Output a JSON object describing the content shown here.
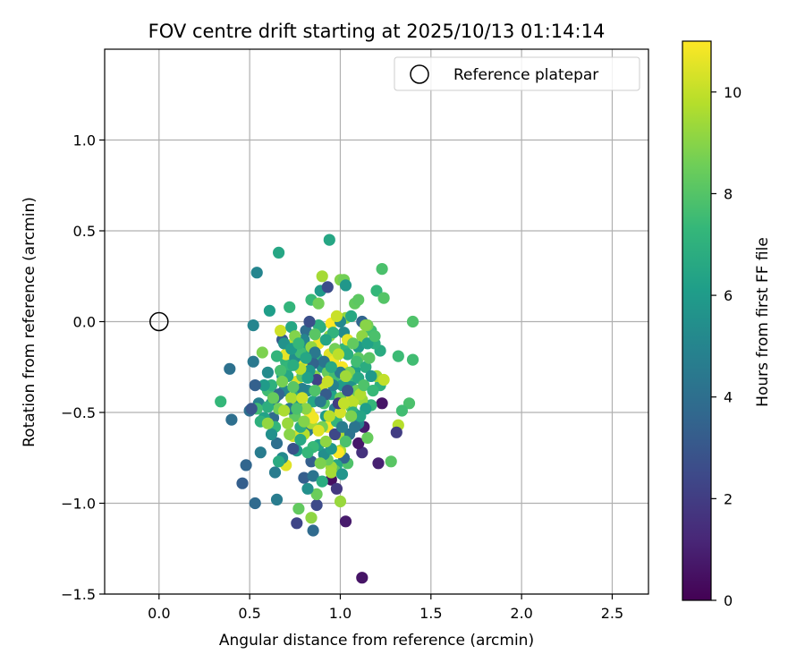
{
  "chart_data": {
    "type": "scatter",
    "title": "FOV centre drift starting at 2025/10/13 01:14:14",
    "xlabel": "Angular distance from reference (arcmin)",
    "ylabel": "Rotation from reference (arcmin)",
    "xlim": [
      -0.3,
      2.7
    ],
    "ylim": [
      -1.5,
      1.5
    ],
    "xticks": [
      0.0,
      0.5,
      1.0,
      1.5,
      2.0,
      2.5
    ],
    "xtick_labels": [
      "0.0",
      "0.5",
      "1.0",
      "1.5",
      "2.0",
      "2.5"
    ],
    "yticks": [
      -1.5,
      -1.0,
      -0.5,
      0.0,
      0.5,
      1.0
    ],
    "ytick_labels": [
      "−1.5",
      "−1.0",
      "−0.5",
      "0.0",
      "0.5",
      "1.0"
    ],
    "grid": true,
    "legend": {
      "label": "Reference platepar",
      "placement": "top-right"
    },
    "reference": {
      "x": 0.0,
      "y": 0.0
    },
    "colorbar": {
      "label": "Hours from first FF file",
      "range": [
        0,
        11
      ],
      "ticks": [
        0,
        2,
        4,
        6,
        8,
        10
      ],
      "tick_labels": [
        "0",
        "2",
        "4",
        "6",
        "8",
        "10"
      ],
      "colormap": "viridis",
      "stops": [
        "#440154",
        "#482878",
        "#3e4989",
        "#31688e",
        "#26828e",
        "#1f9e89",
        "#35b779",
        "#6ece58",
        "#b5de2b",
        "#fde725"
      ]
    },
    "marker_color_mode": "hours",
    "points": [
      [
        1.12,
        -1.41,
        0.6
      ],
      [
        1.03,
        -1.1,
        0.8
      ],
      [
        0.85,
        -1.15,
        3.8
      ],
      [
        0.76,
        -1.11,
        2.3
      ],
      [
        0.87,
        -1.01,
        2.5
      ],
      [
        0.53,
        -1.0,
        3.8
      ],
      [
        0.65,
        -0.98,
        4.6
      ],
      [
        0.46,
        -0.89,
        3.3
      ],
      [
        0.48,
        -0.79,
        3.6
      ],
      [
        0.95,
        -0.87,
        0.4
      ],
      [
        0.98,
        -0.92,
        1.8
      ],
      [
        1.0,
        -0.99,
        9.3
      ],
      [
        0.64,
        -0.83,
        4.6
      ],
      [
        0.8,
        -0.86,
        3.3
      ],
      [
        0.85,
        -0.85,
        4.2
      ],
      [
        0.84,
        -1.08,
        9.1
      ],
      [
        0.77,
        -1.03,
        8.3
      ],
      [
        0.39,
        -0.26,
        4.1
      ],
      [
        0.4,
        -0.54,
        4.0
      ],
      [
        0.34,
        -0.44,
        7.3
      ],
      [
        0.5,
        -0.49,
        4.0
      ],
      [
        0.52,
        -0.22,
        4.4
      ],
      [
        0.52,
        -0.02,
        5.0
      ],
      [
        0.54,
        0.27,
        5.0
      ],
      [
        0.61,
        0.06,
        6.1
      ],
      [
        0.66,
        0.38,
        6.5
      ],
      [
        0.72,
        0.08,
        7.2
      ],
      [
        0.84,
        0.12,
        7.4
      ],
      [
        0.88,
        0.1,
        8.6
      ],
      [
        0.9,
        0.25,
        9.5
      ],
      [
        0.94,
        0.45,
        6.5
      ],
      [
        0.89,
        0.17,
        5.9
      ],
      [
        0.93,
        0.19,
        2.6
      ],
      [
        1.0,
        0.23,
        8.9
      ],
      [
        1.02,
        0.23,
        8.6
      ],
      [
        1.03,
        0.2,
        5.8
      ],
      [
        1.08,
        0.1,
        8.3
      ],
      [
        1.1,
        0.12,
        8.2
      ],
      [
        1.2,
        0.17,
        7.3
      ],
      [
        1.23,
        0.29,
        7.8
      ],
      [
        1.24,
        0.13,
        8.0
      ],
      [
        1.4,
        0.0,
        7.9
      ],
      [
        1.4,
        -0.21,
        7.6
      ],
      [
        1.32,
        -0.19,
        7.5
      ],
      [
        1.38,
        -0.45,
        7.8
      ],
      [
        1.34,
        -0.49,
        7.6
      ],
      [
        1.32,
        -0.57,
        9.8
      ],
      [
        1.31,
        -0.61,
        2.0
      ],
      [
        1.28,
        -0.77,
        8.1
      ],
      [
        1.21,
        -0.78,
        1.0
      ],
      [
        1.12,
        -0.72,
        1.6
      ],
      [
        1.1,
        -0.67,
        0.7
      ],
      [
        1.15,
        -0.64,
        8.4
      ],
      [
        1.13,
        -0.58,
        0.8
      ],
      [
        1.23,
        -0.45,
        0.6
      ],
      [
        1.17,
        -0.46,
        7.3
      ],
      [
        1.22,
        -0.35,
        7.0
      ],
      [
        1.2,
        -0.3,
        9.4
      ],
      [
        1.24,
        -0.32,
        10.0
      ],
      [
        1.22,
        -0.16,
        6.7
      ],
      [
        1.19,
        -0.12,
        6.9
      ],
      [
        1.17,
        -0.05,
        7.6
      ],
      [
        1.15,
        -0.02,
        8.6
      ],
      [
        1.12,
        0.0,
        3.6
      ],
      [
        1.12,
        -0.08,
        9.1
      ],
      [
        1.1,
        -0.14,
        6.0
      ],
      [
        1.1,
        -0.2,
        8.2
      ],
      [
        1.08,
        -0.27,
        6.2
      ],
      [
        1.06,
        -0.33,
        7.4
      ],
      [
        1.05,
        -0.4,
        10.5
      ],
      [
        1.06,
        -0.47,
        8.5
      ],
      [
        1.08,
        -0.51,
        3.5
      ],
      [
        1.12,
        -0.43,
        9.3
      ],
      [
        1.14,
        -0.48,
        6.1
      ],
      [
        1.1,
        -0.56,
        5.0
      ],
      [
        1.05,
        -0.62,
        4.2
      ],
      [
        1.04,
        -0.78,
        7.9
      ],
      [
        1.02,
        -0.75,
        3.6
      ],
      [
        1.0,
        -0.71,
        9.6
      ],
      [
        0.99,
        -0.72,
        11.0
      ],
      [
        0.98,
        -0.79,
        6.5
      ],
      [
        0.97,
        -0.82,
        8.1
      ],
      [
        0.95,
        -0.8,
        9.4
      ],
      [
        0.93,
        -0.76,
        8.4
      ],
      [
        0.91,
        -0.73,
        5.4
      ],
      [
        0.88,
        -0.68,
        6.2
      ],
      [
        0.85,
        -0.69,
        7.4
      ],
      [
        0.84,
        -0.77,
        3.3
      ],
      [
        0.82,
        -0.6,
        4.5
      ],
      [
        0.8,
        -0.62,
        9.8
      ],
      [
        0.78,
        -0.58,
        6.8
      ],
      [
        0.76,
        -0.71,
        6.0
      ],
      [
        0.74,
        -0.7,
        2.8
      ],
      [
        0.74,
        -0.63,
        10.3
      ],
      [
        0.72,
        -0.62,
        9.0
      ],
      [
        0.7,
        -0.79,
        10.5
      ],
      [
        0.68,
        -0.75,
        5.2
      ],
      [
        0.66,
        -0.77,
        6.7
      ],
      [
        0.65,
        -0.67,
        4.0
      ],
      [
        0.63,
        -0.53,
        3.8
      ],
      [
        0.62,
        -0.45,
        5.0
      ],
      [
        0.6,
        -0.38,
        7.6
      ],
      [
        0.58,
        -0.53,
        6.3
      ],
      [
        0.56,
        -0.72,
        4.6
      ],
      [
        0.55,
        -0.45,
        4.8
      ],
      [
        0.57,
        -0.17,
        8.8
      ],
      [
        0.6,
        -0.28,
        5.3
      ],
      [
        0.62,
        -0.35,
        7.0
      ],
      [
        0.64,
        -0.42,
        4.1
      ],
      [
        0.66,
        -0.48,
        8.6
      ],
      [
        0.68,
        -0.3,
        6.1
      ],
      [
        0.7,
        -0.22,
        7.1
      ],
      [
        0.72,
        -0.13,
        9.9
      ],
      [
        0.7,
        -0.18,
        10.6
      ],
      [
        0.68,
        -0.1,
        3.1
      ],
      [
        0.67,
        -0.05,
        10.2
      ],
      [
        0.69,
        -0.12,
        5.6
      ],
      [
        0.71,
        -0.25,
        7.3
      ],
      [
        0.73,
        -0.03,
        6.5
      ],
      [
        0.75,
        -0.2,
        5.4
      ],
      [
        0.76,
        -0.33,
        10.4
      ],
      [
        0.77,
        -0.4,
        6.7
      ],
      [
        0.78,
        -0.47,
        7.4
      ],
      [
        0.79,
        -0.3,
        8.0
      ],
      [
        0.8,
        -0.24,
        10.6
      ],
      [
        0.81,
        -0.15,
        6.2
      ],
      [
        0.81,
        -0.05,
        4.0
      ],
      [
        0.82,
        -0.38,
        5.3
      ],
      [
        0.83,
        -0.5,
        10.7
      ],
      [
        0.84,
        -0.56,
        9.5
      ],
      [
        0.85,
        -0.44,
        6.5
      ],
      [
        0.86,
        -0.3,
        9.0
      ],
      [
        0.87,
        -0.2,
        7.0
      ],
      [
        0.88,
        -0.12,
        10.7
      ],
      [
        0.89,
        -0.03,
        6.7
      ],
      [
        0.9,
        -0.25,
        5.6
      ],
      [
        0.9,
        -0.35,
        10.2
      ],
      [
        0.91,
        -0.45,
        7.8
      ],
      [
        0.92,
        -0.52,
        5.9
      ],
      [
        0.93,
        -0.58,
        10.9
      ],
      [
        0.93,
        -0.28,
        8.4
      ],
      [
        0.94,
        -0.18,
        10.5
      ],
      [
        0.94,
        -0.08,
        9.1
      ],
      [
        0.95,
        -0.01,
        11.0
      ],
      [
        0.95,
        -0.4,
        6.3
      ],
      [
        0.96,
        -0.22,
        10.8
      ],
      [
        0.97,
        -0.3,
        7.6
      ],
      [
        0.97,
        -0.48,
        4.8
      ],
      [
        0.98,
        -0.55,
        7.2
      ],
      [
        0.99,
        -0.62,
        9.6
      ],
      [
        1.0,
        -0.5,
        10.3
      ],
      [
        1.0,
        -0.42,
        8.5
      ],
      [
        1.01,
        -0.35,
        6.0
      ],
      [
        1.01,
        -0.25,
        10.9
      ],
      [
        1.02,
        -0.15,
        7.3
      ],
      [
        1.02,
        -0.06,
        5.3
      ],
      [
        1.03,
        0.02,
        9.2
      ],
      [
        1.04,
        -0.1,
        10.6
      ],
      [
        1.04,
        -0.18,
        6.9
      ],
      [
        1.05,
        -0.28,
        8.8
      ],
      [
        1.06,
        -0.36,
        5.6
      ],
      [
        1.07,
        -0.44,
        9.9
      ],
      [
        1.07,
        -0.5,
        7.0
      ],
      [
        1.08,
        -0.58,
        4.3
      ],
      [
        1.09,
        -0.38,
        8.5
      ],
      [
        1.09,
        -0.22,
        7.6
      ],
      [
        1.1,
        -0.31,
        6.6
      ],
      [
        1.11,
        -0.4,
        9.7
      ],
      [
        1.11,
        -0.52,
        6.4
      ],
      [
        1.13,
        -0.35,
        7.9
      ],
      [
        1.14,
        -0.25,
        6.8
      ],
      [
        1.15,
        -0.12,
        6.3
      ],
      [
        1.16,
        -0.2,
        8.1
      ],
      [
        1.17,
        -0.3,
        5.9
      ],
      [
        1.18,
        -0.38,
        7.4
      ],
      [
        1.19,
        -0.08,
        7.8
      ],
      [
        1.14,
        -0.02,
        9.0
      ],
      [
        1.06,
        0.03,
        6.6
      ],
      [
        1.0,
        0.0,
        5.2
      ],
      [
        0.98,
        0.03,
        10.1
      ],
      [
        0.96,
        -0.06,
        7.1
      ],
      [
        0.92,
        -0.1,
        6.4
      ],
      [
        0.88,
        -0.02,
        6.9
      ],
      [
        0.86,
        -0.07,
        8.1
      ],
      [
        0.83,
        0.0,
        2.7
      ],
      [
        0.8,
        -0.1,
        5.0
      ],
      [
        0.78,
        -0.17,
        7.5
      ],
      [
        0.75,
        -0.08,
        8.9
      ],
      [
        0.73,
        -0.15,
        6.0
      ],
      [
        0.71,
        -0.3,
        6.5
      ],
      [
        0.69,
        -0.38,
        5.1
      ],
      [
        0.67,
        -0.27,
        7.7
      ],
      [
        0.66,
        -0.4,
        3.6
      ],
      [
        0.64,
        -0.58,
        7.2
      ],
      [
        0.62,
        -0.62,
        5.5
      ],
      [
        0.6,
        -0.47,
        6.9
      ],
      [
        0.58,
        -0.35,
        6.0
      ],
      [
        0.56,
        -0.55,
        7.0
      ],
      [
        0.54,
        -0.48,
        7.6
      ],
      [
        0.53,
        -0.35,
        3.4
      ],
      [
        0.51,
        -0.48,
        3.0
      ],
      [
        0.87,
        -0.95,
        8.5
      ],
      [
        0.82,
        -0.92,
        5.5
      ],
      [
        0.9,
        -0.88,
        6.8
      ],
      [
        0.95,
        -0.7,
        5.8
      ],
      [
        0.97,
        -0.62,
        2.4
      ],
      [
        1.01,
        -0.58,
        4.6
      ],
      [
        1.03,
        -0.66,
        7.8
      ],
      [
        0.99,
        -0.45,
        2.0
      ],
      [
        0.96,
        -0.35,
        4.9
      ],
      [
        1.04,
        -0.38,
        2.9
      ],
      [
        0.92,
        -0.4,
        3.2
      ],
      [
        0.89,
        -0.44,
        4.5
      ],
      [
        0.87,
        -0.32,
        2.2
      ],
      [
        0.91,
        -0.22,
        4.3
      ],
      [
        0.85,
        -0.23,
        3.5
      ],
      [
        0.83,
        -0.27,
        5.8
      ],
      [
        0.79,
        -0.37,
        4.8
      ],
      [
        0.77,
        -0.44,
        5.9
      ],
      [
        0.75,
        -0.52,
        8.2
      ],
      [
        0.73,
        -0.42,
        9.6
      ],
      [
        0.72,
        -0.48,
        4.4
      ],
      [
        0.74,
        -0.36,
        8.1
      ],
      [
        0.78,
        -0.26,
        9.8
      ],
      [
        0.82,
        -0.31,
        6.2
      ],
      [
        0.86,
        -0.38,
        7.9
      ],
      [
        0.9,
        -0.58,
        8.7
      ],
      [
        0.94,
        -0.52,
        9.8
      ],
      [
        1.02,
        -0.45,
        10.0
      ],
      [
        1.06,
        -0.52,
        8.8
      ],
      [
        1.0,
        -0.28,
        4.6
      ],
      [
        1.03,
        -0.3,
        9.4
      ],
      [
        1.07,
        -0.12,
        8.3
      ],
      [
        0.97,
        -0.15,
        8.6
      ],
      [
        0.95,
        -0.25,
        6.6
      ],
      [
        0.99,
        -0.18,
        9.9
      ],
      [
        0.93,
        -0.33,
        10.1
      ],
      [
        0.84,
        -0.14,
        9.2
      ],
      [
        0.86,
        -0.17,
        4.4
      ],
      [
        0.79,
        -0.42,
        10.2
      ],
      [
        0.81,
        -0.48,
        9.0
      ],
      [
        0.85,
        -0.53,
        10.8
      ],
      [
        0.88,
        -0.6,
        10.5
      ],
      [
        0.92,
        -0.66,
        9.1
      ],
      [
        0.8,
        -0.55,
        8.9
      ],
      [
        0.76,
        -0.48,
        7.8
      ],
      [
        0.71,
        -0.56,
        9.3
      ],
      [
        0.78,
        -0.65,
        6.6
      ],
      [
        0.82,
        -0.72,
        7.3
      ],
      [
        0.89,
        -0.78,
        8.8
      ],
      [
        0.95,
        -0.83,
        9.5
      ],
      [
        1.01,
        -0.84,
        5.7
      ],
      [
        0.74,
        -0.24,
        6.8
      ],
      [
        0.68,
        -0.33,
        8.7
      ],
      [
        0.65,
        -0.19,
        7.2
      ],
      [
        0.63,
        -0.42,
        8.4
      ],
      [
        0.6,
        -0.56,
        9.2
      ],
      [
        0.69,
        -0.49,
        9.6
      ],
      [
        0.77,
        -0.12,
        7.3
      ],
      [
        0.81,
        -0.2,
        6.5
      ]
    ]
  }
}
